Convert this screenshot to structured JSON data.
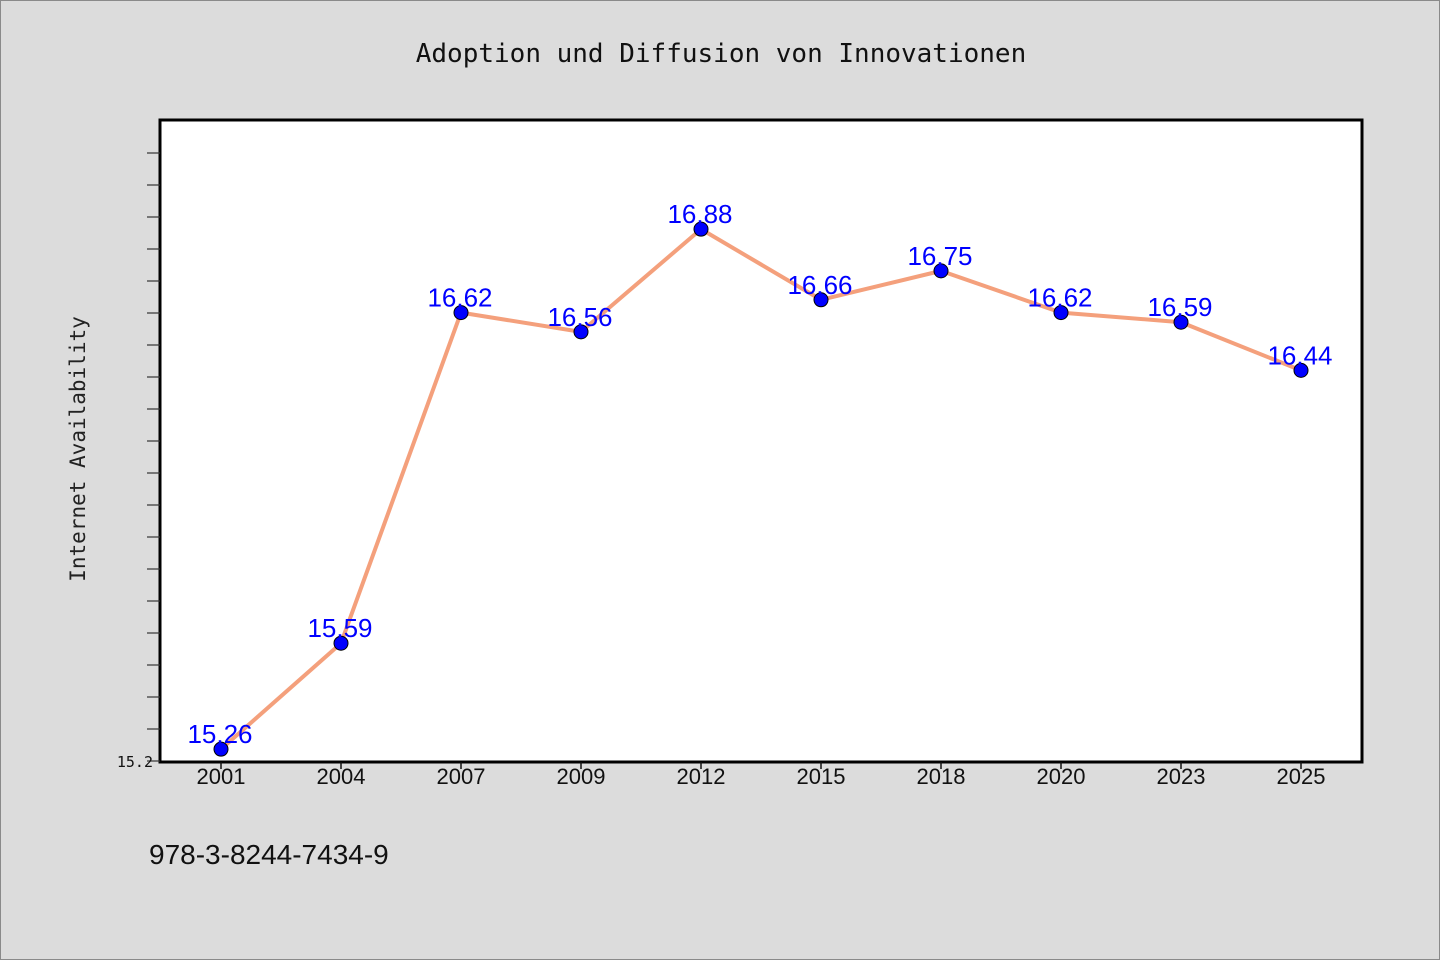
{
  "chart_data": {
    "type": "line",
    "title": "Adoption und Diffusion von Innovationen",
    "xlabel": "",
    "ylabel": "Internet Availability",
    "categories": [
      "2001",
      "2004",
      "2007",
      "2009",
      "2012",
      "2015",
      "2018",
      "2020",
      "2023",
      "2025"
    ],
    "series": [
      {
        "values": [
          15.26,
          15.59,
          16.62,
          16.56,
          16.88,
          16.66,
          16.75,
          16.62,
          16.59,
          16.44
        ]
      }
    ],
    "data_labels": [
      "15.26",
      "15.59",
      "16.62",
      "16.56",
      "16.88",
      "16.66",
      "16.75",
      "16.62",
      "16.59",
      "16.44"
    ],
    "y_tick_labels": [
      "15.2"
    ],
    "ylim": [
      15.22,
      17.22
    ],
    "grid": false,
    "line_color": "#f4a07c",
    "marker_color": "#0000ff",
    "label_color": "#0000ff"
  },
  "footer_text": "978-3-8244-7434-9"
}
